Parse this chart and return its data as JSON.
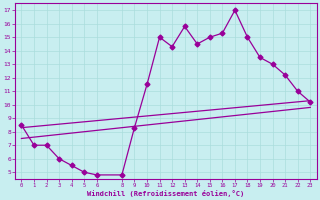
{
  "xlabel": "Windchill (Refroidissement éolien,°C)",
  "background_color": "#c8eef0",
  "grid_color": "#aadddd",
  "line_color": "#990099",
  "xlim": [
    -0.5,
    23.5
  ],
  "ylim": [
    4.5,
    17.5
  ],
  "xticks": [
    0,
    1,
    2,
    3,
    4,
    5,
    6,
    8,
    9,
    10,
    11,
    12,
    13,
    14,
    15,
    16,
    17,
    18,
    19,
    20,
    21,
    22,
    23
  ],
  "yticks": [
    5,
    6,
    7,
    8,
    9,
    10,
    11,
    12,
    13,
    14,
    15,
    16,
    17
  ],
  "line1_x": [
    0,
    1,
    2,
    3,
    4,
    5,
    6,
    8,
    9,
    10,
    11,
    12,
    13,
    14,
    15,
    16,
    17,
    18,
    19,
    20,
    21,
    22,
    23
  ],
  "line1_y": [
    8.5,
    7.0,
    7.0,
    6.0,
    5.5,
    5.0,
    4.8,
    4.8,
    8.3,
    11.5,
    15.0,
    14.3,
    15.8,
    14.5,
    15.0,
    15.3,
    17.0,
    15.0,
    13.5,
    13.0,
    12.2,
    11.0,
    10.2
  ],
  "line2_x": [
    0,
    23
  ],
  "line2_y": [
    8.3,
    10.3
  ],
  "line3_x": [
    0,
    23
  ],
  "line3_y": [
    7.5,
    9.8
  ],
  "marker": "D",
  "markersize": 2.5,
  "linewidth": 0.9
}
